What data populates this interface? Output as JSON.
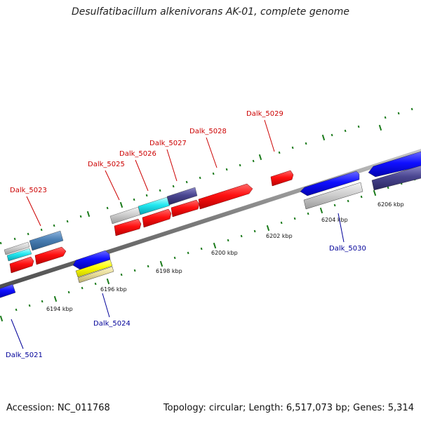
{
  "header": {
    "title": "Desulfatibacillum alkenivorans AK-01, complete genome"
  },
  "footer": {
    "accession": "Accession: NC_011768",
    "stats": "Topology: circular; Length: 6,517,073 bp; Genes: 5,314"
  },
  "colors": {
    "forward_label": "#cc0000",
    "reverse_label": "#000099",
    "backbone": "#8a8a8a",
    "tick": "#1a7a1a"
  },
  "scale": {
    "unit": "kbp",
    "labels": [
      "6194 kbp",
      "6196 kbp",
      "6198 kbp",
      "6200 kbp",
      "6202 kbp",
      "6204 kbp",
      "6206 kbp"
    ]
  },
  "genes": {
    "forward_labels": [
      "Dalk_5023",
      "Dalk_5025",
      "Dalk_5026",
      "Dalk_5027",
      "Dalk_5028",
      "Dalk_5029"
    ],
    "reverse_labels": [
      "Dalk_5021",
      "Dalk_5024",
      "Dalk_5030"
    ]
  }
}
